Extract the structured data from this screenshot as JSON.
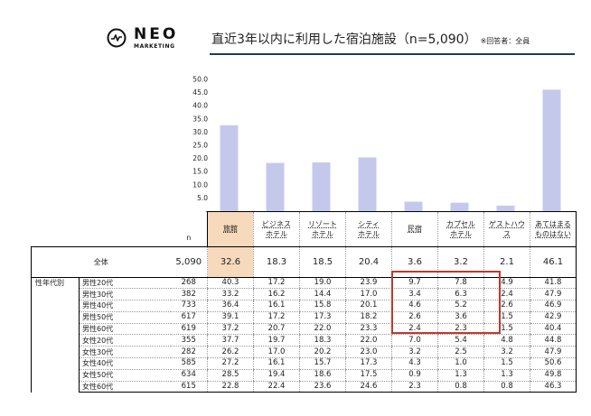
{
  "header": {
    "logo_name": "NEO",
    "logo_sub": "MARKETING",
    "title": "直近3年以内に利用した宿泊施設（n=5,090）",
    "note": "※回答者：全員"
  },
  "colors": {
    "bar": "#c4c9ec",
    "highlight": "#f7d9bc",
    "box": "#c0392b",
    "rule": "#1f3a5f"
  },
  "chart_data": {
    "type": "bar",
    "categories": [
      "旅館",
      "ビジネスホテル",
      "リゾートホテル",
      "シティホテル",
      "民宿",
      "カプセルホテル",
      "ゲストハウス",
      "あてはまるものはない"
    ],
    "values": [
      32.6,
      18.3,
      18.5,
      20.4,
      3.6,
      3.2,
      2.1,
      46.1
    ],
    "ylim": [
      0,
      50
    ],
    "yticks": [
      "50.0",
      "45.0",
      "40.0",
      "35.0",
      "30.0",
      "25.0",
      "20.0",
      "15.0",
      "10.0",
      "5.0",
      "-"
    ],
    "grid": false
  },
  "table": {
    "n_header": "n",
    "columns": [
      {
        "l1": "旅館",
        "l2": "",
        "hl": true
      },
      {
        "l1": "ビジネス",
        "l2": "ホテル",
        "hl": false
      },
      {
        "l1": "リゾート",
        "l2": "ホテル",
        "hl": false
      },
      {
        "l1": "シティ",
        "l2": "ホテル",
        "hl": false
      },
      {
        "l1": "民宿",
        "l2": "",
        "hl": false
      },
      {
        "l1": "カプセル",
        "l2": "ホテル",
        "hl": false
      },
      {
        "l1": "ゲストハウ",
        "l2": "ス",
        "hl": false
      },
      {
        "l1": "あてはまる",
        "l2": "ものはない",
        "hl": false
      }
    ],
    "total": {
      "label": "全体",
      "n": "5,090",
      "values": [
        "32.6",
        "18.3",
        "18.5",
        "20.4",
        "3.6",
        "3.2",
        "2.1",
        "46.1"
      ]
    },
    "group_label": "性年代別",
    "rows": [
      {
        "label": "男性20代",
        "n": "268",
        "values": [
          "40.3",
          "17.2",
          "19.0",
          "23.9",
          "9.7",
          "7.8",
          "4.9",
          "41.8"
        ]
      },
      {
        "label": "男性30代",
        "n": "382",
        "values": [
          "33.2",
          "16.2",
          "14.4",
          "17.0",
          "3.4",
          "6.3",
          "2.4",
          "47.9"
        ]
      },
      {
        "label": "男性40代",
        "n": "733",
        "values": [
          "36.4",
          "16.1",
          "15.8",
          "20.1",
          "4.6",
          "5.2",
          "2.6",
          "46.9"
        ]
      },
      {
        "label": "男性50代",
        "n": "617",
        "values": [
          "39.1",
          "17.2",
          "17.3",
          "18.2",
          "2.6",
          "3.6",
          "1.5",
          "42.9"
        ]
      },
      {
        "label": "男性60代",
        "n": "619",
        "values": [
          "37.2",
          "20.7",
          "22.0",
          "23.3",
          "2.4",
          "2.3",
          "1.5",
          "40.4"
        ]
      },
      {
        "label": "女性20代",
        "n": "355",
        "values": [
          "37.7",
          "19.7",
          "18.3",
          "22.0",
          "7.0",
          "5.4",
          "4.8",
          "44.8"
        ]
      },
      {
        "label": "女性30代",
        "n": "282",
        "values": [
          "26.2",
          "17.0",
          "20.2",
          "23.0",
          "3.2",
          "2.5",
          "3.2",
          "47.9"
        ]
      },
      {
        "label": "女性40代",
        "n": "585",
        "values": [
          "27.2",
          "16.1",
          "15.7",
          "17.3",
          "4.3",
          "1.0",
          "1.5",
          "50.6"
        ]
      },
      {
        "label": "女性50代",
        "n": "634",
        "values": [
          "28.5",
          "19.4",
          "18.6",
          "17.5",
          "0.9",
          "1.3",
          "1.3",
          "49.8"
        ]
      },
      {
        "label": "女性60代",
        "n": "615",
        "values": [
          "22.8",
          "22.4",
          "23.6",
          "24.6",
          "2.3",
          "0.8",
          "0.8",
          "46.3"
        ]
      }
    ]
  }
}
